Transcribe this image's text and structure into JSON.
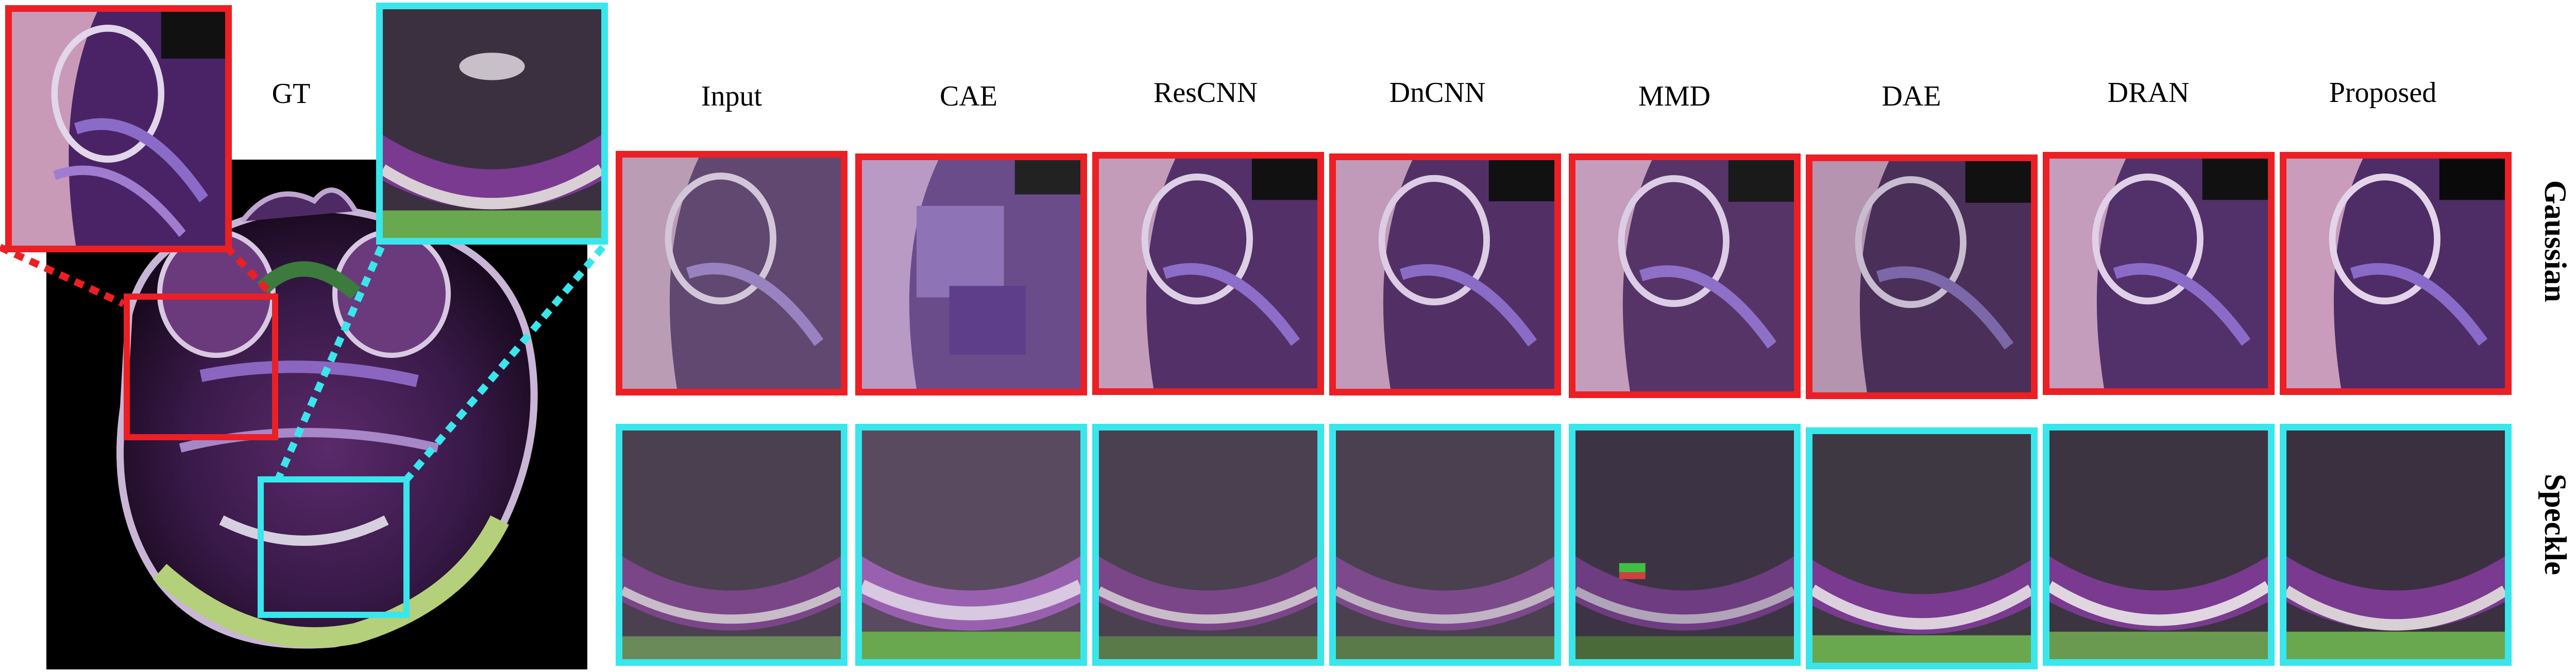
{
  "gt_label": "GT",
  "columns": [
    "Input",
    "CAE",
    "ResCNN",
    "DnCNN",
    "MMD",
    "DAE",
    "DRAN",
    "Proposed"
  ],
  "rows": [
    "Gaussian",
    "Speckle"
  ],
  "colors": {
    "red_box": "#ec1f24",
    "cyan_box": "#39e6ec",
    "background": "#ffffff"
  }
}
